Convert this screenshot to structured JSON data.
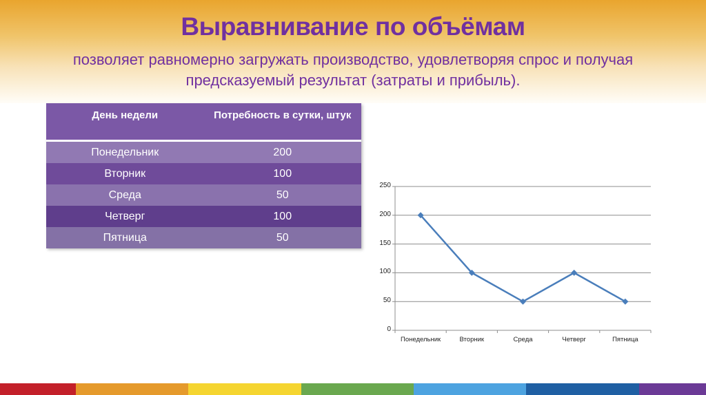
{
  "slide": {
    "title": "Выравнивание по объёмам",
    "subtitle": "позволяет равномерно загружать производство, удовлетворяя спрос и получая предсказуемый результат (затраты и прибыль).",
    "accent_color": "#7030a0"
  },
  "table": {
    "headers": [
      "День недели",
      "Потребность в сутки, штук"
    ],
    "rows": [
      [
        "Понедельник",
        "200"
      ],
      [
        "Вторник",
        "100"
      ],
      [
        "Среда",
        "50"
      ],
      [
        "Четверг",
        "100"
      ],
      [
        "Пятница",
        "50"
      ]
    ]
  },
  "chart_data": {
    "type": "line",
    "title": "",
    "xlabel": "",
    "ylabel": "",
    "categories": [
      "Понедельник",
      "Вторник",
      "Среда",
      "Четверг",
      "Пятница"
    ],
    "series": [
      {
        "name": "Потребность в сутки, штук",
        "values": [
          200,
          100,
          50,
          100,
          50
        ],
        "color": "#4a7ebb",
        "marker": "diamond"
      }
    ],
    "ylim": [
      0,
      250
    ],
    "yticks": [
      "0",
      "50",
      "100",
      "150",
      "200",
      "250"
    ],
    "grid": true,
    "legend": "none"
  },
  "footer_stripe_colors": [
    "#c3202a",
    "#e59a2c",
    "#f5d530",
    "#6aa84f",
    "#4da3e0",
    "#1f5fa3",
    "#6b3a96"
  ]
}
